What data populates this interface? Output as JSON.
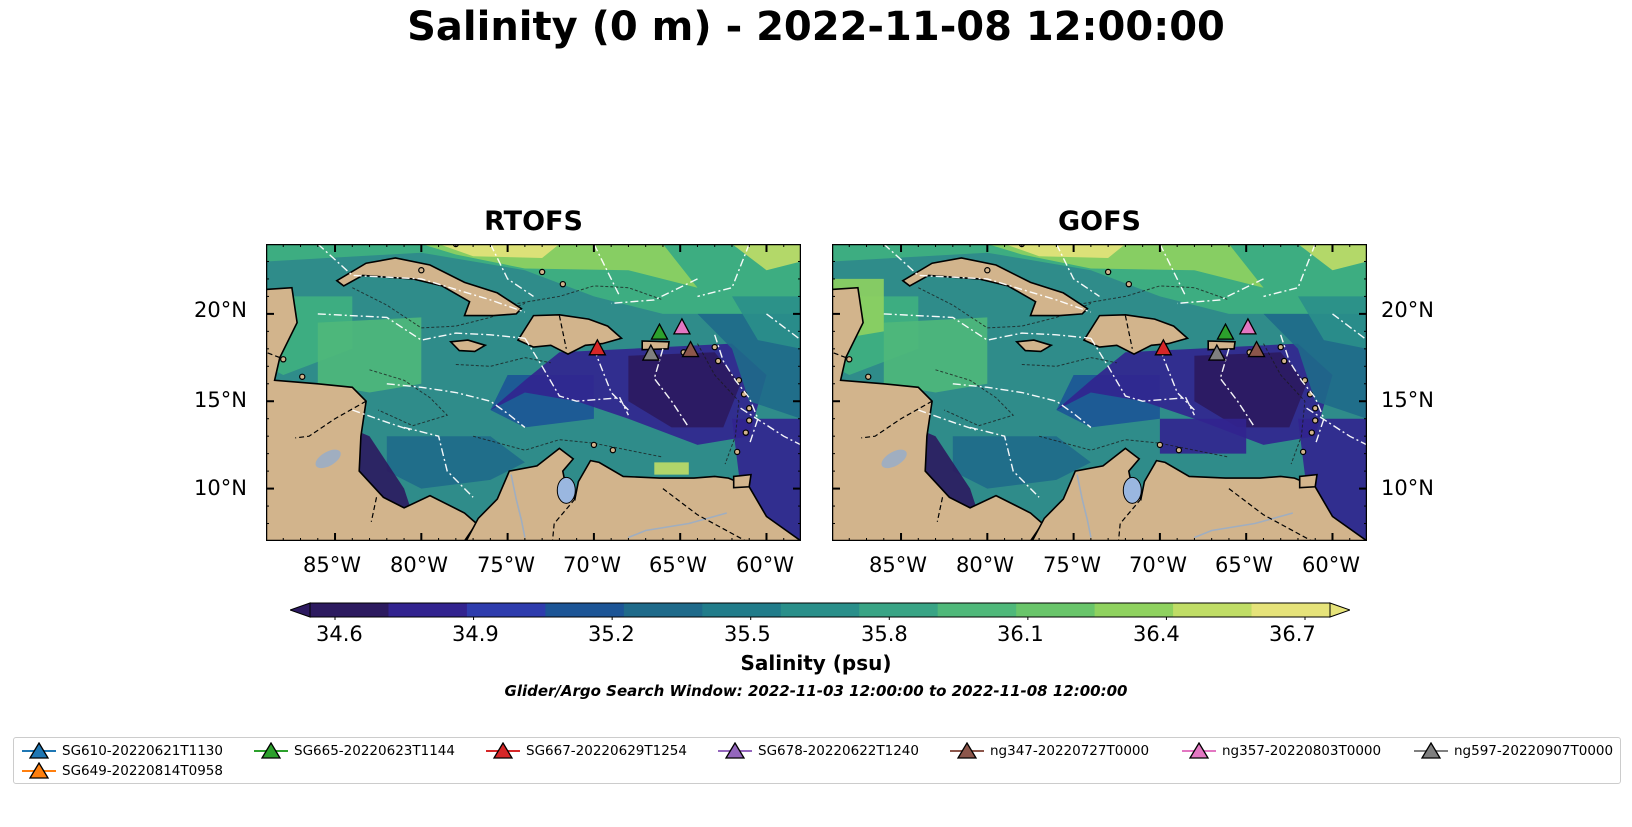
{
  "title": "Salinity (0 m) - 2022-11-08 12:00:00",
  "panels": [
    {
      "title": "RTOFS",
      "left": 266
    },
    {
      "title": "GOFS",
      "left": 832
    }
  ],
  "map": {
    "lat_labels": [
      "20°N",
      "15°N",
      "10°N"
    ],
    "lon_labels": [
      "85°W",
      "80°W",
      "75°W",
      "70°W",
      "65°W",
      "60°W"
    ],
    "lat_range": [
      7,
      24
    ],
    "lon_range": [
      -89,
      -58
    ]
  },
  "colorbar": {
    "ticks": [
      "34.6",
      "34.9",
      "35.2",
      "35.5",
      "35.8",
      "36.1",
      "36.4",
      "36.7"
    ],
    "label": "Salinity (psu)",
    "range": [
      34.6,
      36.7
    ],
    "colors": [
      "#2c1a5f",
      "#32238f",
      "#2e3cad",
      "#1c5596",
      "#1f6a8a",
      "#217c8a",
      "#2a8f8a",
      "#39a485",
      "#4fb87a",
      "#69c56a",
      "#8fd25f",
      "#c0dd66",
      "#e6e37a"
    ]
  },
  "search_window": "Glider/Argo Search Window: 2022-11-03 12:00:00 to 2022-11-08 12:00:00",
  "legend": [
    {
      "label": "SG610-20220621T1130",
      "color": "#1f77b4"
    },
    {
      "label": "SG665-20220623T1144",
      "color": "#2ca02c"
    },
    {
      "label": "SG667-20220629T1254",
      "color": "#d62728"
    },
    {
      "label": "SG678-20220622T1240",
      "color": "#9467bd"
    },
    {
      "label": "ng347-20220727T0000",
      "color": "#8c564b"
    },
    {
      "label": "ng357-20220803T0000",
      "color": "#e377c2"
    },
    {
      "label": "ng597-20220907T0000",
      "color": "#7f7f7f"
    },
    {
      "label": "SG649-20220814T0958",
      "color": "#ff7f0e"
    }
  ],
  "markers": [
    {
      "name": "SG665-20220623T1144",
      "lon": -66.2,
      "lat": 18.9,
      "color": "#2ca02c"
    },
    {
      "name": "SG667-20220629T1254",
      "lon": -69.8,
      "lat": 18.0,
      "color": "#d62728"
    },
    {
      "name": "ng357-20220803T0000",
      "lon": -64.9,
      "lat": 19.2,
      "color": "#e377c2"
    },
    {
      "name": "ng347-20220727T0000",
      "lon": -64.4,
      "lat": 17.9,
      "color": "#8c564b"
    },
    {
      "name": "ng597-20220907T0000",
      "lon": -66.7,
      "lat": 17.7,
      "color": "#7f7f7f"
    }
  ]
}
